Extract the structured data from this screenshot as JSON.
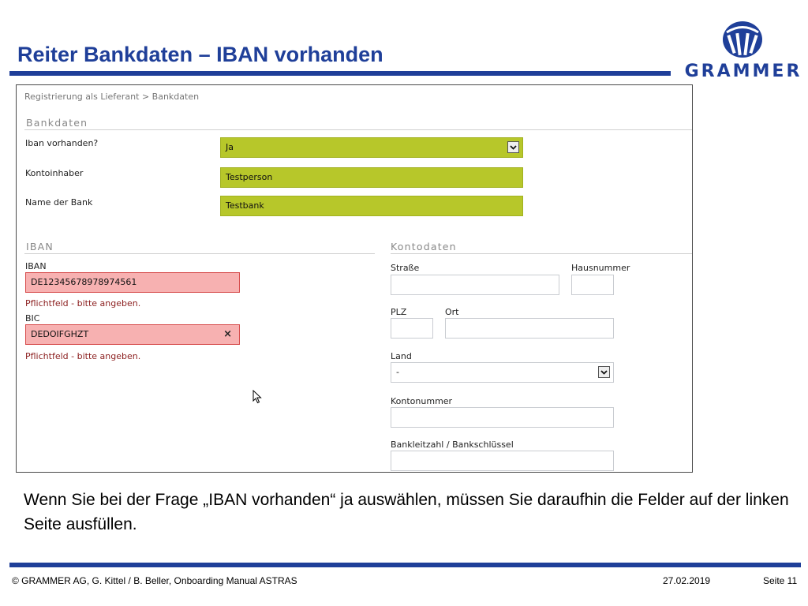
{
  "slide": {
    "title": "Reiter Bankdaten – IBAN vorhanden",
    "logo_text": "GRAMMER",
    "caption": "Wenn Sie bei der Frage „IBAN vorhanden“ ja auswählen, müssen Sie daraufhin die Felder auf der linken Seite ausfüllen."
  },
  "form": {
    "breadcrumb": "Registrierung als Lieferant > Bankdaten",
    "bankdaten": {
      "header": "Bankdaten",
      "iban_question_label": "Iban vorhanden?",
      "iban_question_value": "Ja",
      "kontoinhaber_label": "Kontoinhaber",
      "kontoinhaber_value": "Testperson",
      "bankname_label": "Name der Bank",
      "bankname_value": "Testbank"
    },
    "iban_section": {
      "header": "IBAN",
      "iban_label": "IBAN",
      "iban_value": "DE12345678978974561",
      "iban_error": "Pflichtfeld - bitte angeben.",
      "bic_label": "BIC",
      "bic_value": "DEDOIFGHZT",
      "bic_clear": "×",
      "bic_error": "Pflichtfeld - bitte angeben."
    },
    "kontodaten": {
      "header": "Kontodaten",
      "strasse_label": "Straße",
      "hausnummer_label": "Hausnummer",
      "plz_label": "PLZ",
      "ort_label": "Ort",
      "land_label": "Land",
      "land_value": "-",
      "kontonummer_label": "Kontonummer",
      "blz_label": "Bankleitzahl / Bankschlüssel"
    }
  },
  "footer": {
    "copyright": "© GRAMMER AG, G. Kittel / B. Beller, Onboarding Manual ASTRAS",
    "date": "27.02.2019",
    "page": "Seite 11"
  },
  "colors": {
    "brand_blue": "#1f3f99",
    "field_green": "#b7c72a",
    "field_error": "#f7b1b1",
    "error_text": "#8b1e1e"
  },
  "icons": [
    "grammer-logo-icon",
    "dropdown-arrow-icon",
    "clear-icon",
    "mouse-cursor-icon"
  ]
}
